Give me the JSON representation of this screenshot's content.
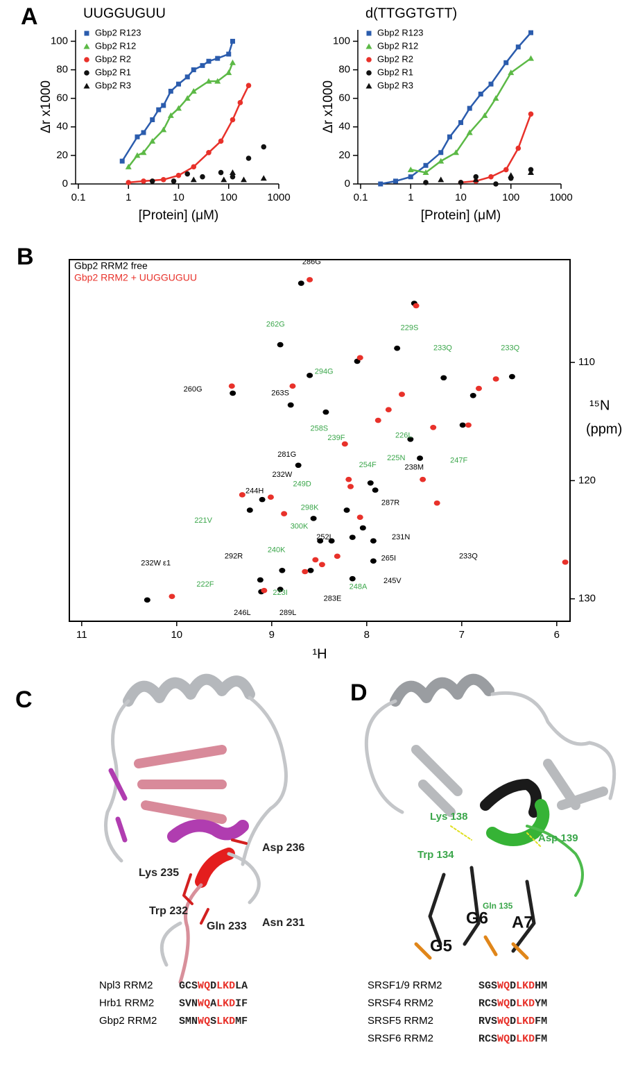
{
  "panel_labels": [
    "A",
    "B",
    "C",
    "D"
  ],
  "chart_data": [
    {
      "type": "scatter",
      "title": "UUGGUGUU",
      "x_label": "[Protein] (μM)",
      "y_label": "Δr x1000",
      "x_scale": "log",
      "xlim": [
        0.1,
        1000
      ],
      "xticks": [
        0.1,
        1,
        10,
        100,
        1000
      ],
      "ylim": [
        0,
        108
      ],
      "yticks": [
        0,
        20,
        40,
        60,
        80,
        100
      ],
      "legend": "upper left",
      "series": [
        {
          "name": "Gbp2 R123",
          "color": "#2b5cad",
          "marker": "square",
          "line": true,
          "x": [
            0.75,
            1.5,
            2,
            3,
            4,
            5,
            7,
            10,
            15,
            20,
            30,
            40,
            60,
            100,
            120
          ],
          "values": [
            16,
            33,
            36,
            45,
            52,
            55,
            65,
            70,
            75,
            80,
            83,
            86,
            88,
            91,
            100
          ]
        },
        {
          "name": "Gbp2 R12",
          "color": "#5cb946",
          "marker": "triangle",
          "line": true,
          "x": [
            1,
            1.5,
            2,
            3,
            5,
            7,
            10,
            15,
            20,
            40,
            60,
            100,
            120
          ],
          "values": [
            12,
            20,
            22,
            30,
            38,
            48,
            53,
            60,
            65,
            72,
            72,
            78,
            85
          ]
        },
        {
          "name": "Gbp2 R2",
          "color": "#e8312a",
          "marker": "circle",
          "line": true,
          "x": [
            1,
            2,
            5,
            10,
            20,
            40,
            70,
            120,
            170,
            250
          ],
          "values": [
            1,
            2,
            3,
            6,
            12,
            22,
            30,
            45,
            57,
            69
          ]
        },
        {
          "name": "Gbp2 R1",
          "color": "#111111",
          "marker": "circle",
          "line": false,
          "x": [
            3,
            8,
            15,
            30,
            70,
            120,
            250,
            500
          ],
          "values": [
            2,
            2,
            7,
            5,
            8,
            5,
            18,
            26
          ]
        },
        {
          "name": "Gbp2 R3",
          "color": "#111111",
          "marker": "triangle",
          "line": false,
          "x": [
            20,
            80,
            120,
            200,
            500
          ],
          "values": [
            3,
            3,
            8,
            3,
            4
          ]
        }
      ]
    },
    {
      "type": "scatter",
      "title": "d(TTGGTGTT)",
      "x_label": "[Protein] (μM)",
      "y_label": "Δr x1000",
      "x_scale": "log",
      "xlim": [
        0.1,
        1000
      ],
      "xticks": [
        0.1,
        1,
        10,
        100,
        1000
      ],
      "ylim": [
        0,
        108
      ],
      "yticks": [
        0,
        20,
        40,
        60,
        80,
        100
      ],
      "legend": "upper left",
      "series": [
        {
          "name": "Gbp2 R123",
          "color": "#2b5cad",
          "marker": "square",
          "line": true,
          "x": [
            0.25,
            0.5,
            1,
            2,
            4,
            6,
            10,
            15,
            25,
            40,
            80,
            140,
            250
          ],
          "values": [
            0,
            2,
            5,
            13,
            22,
            33,
            43,
            53,
            63,
            70,
            85,
            96,
            106
          ]
        },
        {
          "name": "Gbp2 R12",
          "color": "#5cb946",
          "marker": "triangle",
          "line": true,
          "x": [
            1,
            2,
            4,
            8,
            15,
            30,
            50,
            100,
            250
          ],
          "values": [
            10,
            8,
            16,
            22,
            36,
            48,
            60,
            78,
            88
          ]
        },
        {
          "name": "Gbp2 R2",
          "color": "#e8312a",
          "marker": "circle",
          "line": true,
          "x": [
            10,
            20,
            40,
            80,
            140,
            250
          ],
          "values": [
            1,
            2,
            5,
            10,
            25,
            49
          ]
        },
        {
          "name": "Gbp2 R1",
          "color": "#111111",
          "marker": "circle",
          "line": false,
          "x": [
            2,
            10,
            20,
            50,
            100,
            250
          ],
          "values": [
            1,
            1,
            5,
            0,
            4,
            10
          ]
        },
        {
          "name": "Gbp2 R3",
          "color": "#111111",
          "marker": "triangle",
          "line": false,
          "x": [
            4,
            20,
            100,
            250
          ],
          "values": [
            3,
            3,
            6,
            8
          ]
        }
      ]
    },
    {
      "type": "scatter",
      "x_label": "¹H",
      "y_label_lines": [
        "¹⁵N",
        "(ppm)"
      ],
      "xlim": [
        11.13,
        5.86
      ],
      "xticks": [
        11,
        10,
        9,
        8,
        7,
        6
      ],
      "ylim": [
        131.9,
        101.3
      ],
      "yticks": [
        110,
        120,
        130
      ],
      "y_axis_side": "right",
      "legend": "upper left",
      "series": [
        {
          "name": "Gbp2 RRM2 free",
          "color": "#000000",
          "marker": "blob",
          "line": false,
          "x": [
            8.69,
            9.41,
            8.91,
            8.6,
            7.68,
            7.19,
            6.47,
            8.8,
            8.43,
            8.72,
            9.1,
            7.96,
            7.91,
            8.21,
            8.04,
            8.56,
            8.15,
            8.49,
            8.37,
            7.93,
            7.93,
            9.12,
            8.89,
            8.59,
            8.15,
            10.31,
            9.11,
            8.91,
            7.54,
            7.44,
            6.88,
            6.99,
            7.5,
            8.1,
            9.23
          ],
          "values": [
            103.3,
            112.6,
            108.5,
            111.1,
            108.8,
            111.3,
            111.2,
            113.6,
            114.2,
            118.7,
            121.6,
            120.2,
            120.8,
            122.5,
            124.0,
            123.2,
            124.8,
            125.1,
            125.1,
            125.1,
            126.8,
            128.4,
            127.6,
            127.6,
            128.3,
            130.1,
            129.4,
            129.2,
            116.5,
            118.1,
            112.8,
            115.3,
            105.0,
            109.9,
            122.5
          ]
        },
        {
          "name": "Gbp2 RRM2 + UUGGUGUU",
          "color": "#e8312a",
          "marker": "blob",
          "line": false,
          "x": [
            8.6,
            9.42,
            8.78,
            10.05,
            7.48,
            8.07,
            7.63,
            7.3,
            6.93,
            6.82,
            7.41,
            7.26,
            8.19,
            8.17,
            8.07,
            9.31,
            9.01,
            8.87,
            8.31,
            8.47,
            8.65,
            9.08,
            7.88,
            7.77,
            6.64,
            5.91,
            8.23,
            8.54
          ],
          "values": [
            103.0,
            112.0,
            112.0,
            129.8,
            105.2,
            109.6,
            112.7,
            115.5,
            115.3,
            112.2,
            119.9,
            121.9,
            119.9,
            120.5,
            123.1,
            121.2,
            121.4,
            122.8,
            126.4,
            127.1,
            127.7,
            129.3,
            114.9,
            114.0,
            111.4,
            126.9,
            116.9,
            126.7
          ]
        }
      ],
      "annotations": [
        {
          "text": "286G",
          "x": 8.58,
          "y": 101.5,
          "color": "#000000"
        },
        {
          "text": "260G",
          "x": 9.83,
          "y": 112.3,
          "color": "#000000"
        },
        {
          "text": "262G",
          "x": 8.96,
          "y": 106.8,
          "color": "#3aa64a"
        },
        {
          "text": "294G",
          "x": 8.45,
          "y": 110.8,
          "color": "#3aa64a"
        },
        {
          "text": "229S",
          "x": 7.55,
          "y": 107.1,
          "color": "#3aa64a"
        },
        {
          "text": "233Q",
          "x": 7.2,
          "y": 108.8,
          "color": "#3aa64a"
        },
        {
          "text": "233Q",
          "x": 6.49,
          "y": 108.8,
          "color": "#3aa64a"
        },
        {
          "text": "263S",
          "x": 8.91,
          "y": 112.6,
          "color": "#000000"
        },
        {
          "text": "258S",
          "x": 8.5,
          "y": 115.6,
          "color": "#3aa64a"
        },
        {
          "text": "239F",
          "x": 8.32,
          "y": 116.4,
          "color": "#3aa64a"
        },
        {
          "text": "226L",
          "x": 7.61,
          "y": 116.2,
          "color": "#3aa64a"
        },
        {
          "text": "225N",
          "x": 7.69,
          "y": 118.1,
          "color": "#3aa64a"
        },
        {
          "text": "254F",
          "x": 7.99,
          "y": 118.7,
          "color": "#3aa64a"
        },
        {
          "text": "238M",
          "x": 7.5,
          "y": 118.9,
          "color": "#000000"
        },
        {
          "text": "281G",
          "x": 8.84,
          "y": 117.8,
          "color": "#000000"
        },
        {
          "text": "232W",
          "x": 8.89,
          "y": 119.5,
          "color": "#000000"
        },
        {
          "text": "249D",
          "x": 8.68,
          "y": 120.3,
          "color": "#3aa64a"
        },
        {
          "text": "244H",
          "x": 9.18,
          "y": 120.9,
          "color": "#000000"
        },
        {
          "text": "247F",
          "x": 7.03,
          "y": 118.3,
          "color": "#3aa64a"
        },
        {
          "text": "298K",
          "x": 8.6,
          "y": 122.3,
          "color": "#3aa64a"
        },
        {
          "text": "300K",
          "x": 8.71,
          "y": 123.9,
          "color": "#3aa64a"
        },
        {
          "text": "287R",
          "x": 7.75,
          "y": 121.9,
          "color": "#000000"
        },
        {
          "text": "221V",
          "x": 9.72,
          "y": 123.4,
          "color": "#3aa64a"
        },
        {
          "text": "252L",
          "x": 8.44,
          "y": 124.8,
          "color": "#000000"
        },
        {
          "text": "231N",
          "x": 7.64,
          "y": 124.8,
          "color": "#000000"
        },
        {
          "text": "233Q",
          "x": 6.93,
          "y": 126.4,
          "color": "#000000"
        },
        {
          "text": "292R",
          "x": 9.4,
          "y": 126.4,
          "color": "#000000"
        },
        {
          "text": "240K",
          "x": 8.95,
          "y": 125.9,
          "color": "#3aa64a"
        },
        {
          "text": "265I",
          "x": 7.77,
          "y": 126.6,
          "color": "#000000"
        },
        {
          "text": "222F",
          "x": 9.7,
          "y": 128.8,
          "color": "#3aa64a"
        },
        {
          "text": "245V",
          "x": 7.73,
          "y": 128.5,
          "color": "#000000"
        },
        {
          "text": "248A",
          "x": 8.09,
          "y": 129.0,
          "color": "#3aa64a"
        },
        {
          "text": "223I",
          "x": 8.91,
          "y": 129.5,
          "color": "#3aa64a"
        },
        {
          "text": "283E",
          "x": 8.36,
          "y": 130.0,
          "color": "#000000"
        },
        {
          "text": "232W ε1",
          "x": 10.22,
          "y": 127.0,
          "color": "#000000"
        },
        {
          "text": "246L",
          "x": 9.31,
          "y": 131.2,
          "color": "#000000"
        },
        {
          "text": "289L",
          "x": 8.83,
          "y": 131.2,
          "color": "#000000"
        }
      ]
    }
  ],
  "panel_c": {
    "labels": [
      "Asp 236",
      "Lys 235",
      "Trp 232",
      "Gln 233",
      "Asn 231"
    ],
    "alignment": [
      {
        "name": "Npl3 RRM2",
        "sequence": "GCSWQDLKDLA"
      },
      {
        "name": "Hrb1 RRM2",
        "sequence": "SVNWQALKDIF"
      },
      {
        "name": "Gbp2 RRM2",
        "sequence": "SMNWQSLKDMF"
      }
    ],
    "highlight_positions": [
      3,
      4,
      6,
      7,
      8
    ],
    "highlight_color": "#e8312a"
  },
  "panel_d": {
    "labels": [
      "Lys 138",
      "Asp 139",
      "Trp 134",
      "Gln 135",
      "G5",
      "G6",
      "A7"
    ],
    "alignment": [
      {
        "name": "SRSF1/9 RRM2",
        "sequence": "SGSWQDLKDHM"
      },
      {
        "name": "SRSF4 RRM2",
        "sequence": "RCSWQDLKDYM"
      },
      {
        "name": "SRSF5 RRM2",
        "sequence": "RVSWQDLKDFM"
      },
      {
        "name": "SRSF6 RRM2",
        "sequence": "RCSWQDLKDFM"
      }
    ],
    "highlight_positions": [
      3,
      4,
      6,
      7,
      8
    ],
    "highlight_color": "#e8312a"
  }
}
